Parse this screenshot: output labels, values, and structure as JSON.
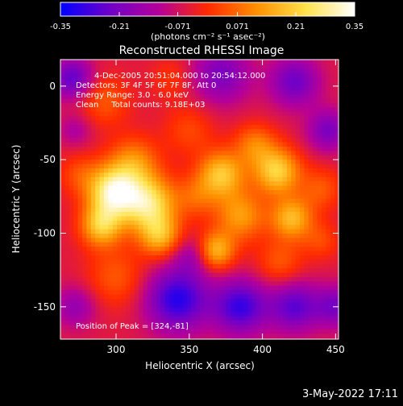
{
  "colors": {
    "background": "#000000",
    "foreground": "#ffffff",
    "colorbar_stops": [
      "#0000ff",
      "#6f00c9",
      "#b4009a",
      "#ff2a00",
      "#ff9000",
      "#ffe24a",
      "#ffffff"
    ]
  },
  "colorbar": {
    "ticks": [
      "-0.35",
      "-0.21",
      "-0.071",
      "0.071",
      "0.21",
      "0.35"
    ],
    "units": "(photons cm⁻² s⁻¹ asec⁻²)"
  },
  "timestamp": "3-May-2022 17:11",
  "chart_data": {
    "type": "heatmap",
    "title": "Reconstructed RHESSI Image",
    "xlabel": "Heliocentric X (arcsec)",
    "ylabel": "Heliocentric Y (arcsec)",
    "xlim": [
      262,
      452
    ],
    "ylim": [
      -172,
      18
    ],
    "value_range": [
      -0.35,
      0.35
    ],
    "x_ticks": [
      300,
      350,
      400,
      450
    ],
    "y_ticks": [
      0,
      -50,
      -100,
      -150
    ],
    "annotations": [
      "4-Dec-2005 20:51:04.000 to 20:54:12.000",
      "Detectors: 3F 4F 5F 6F 7F 8F, Att 0",
      "Energy Range: 3.0 - 6.0 keV",
      "Clean     Total counts: 9.18E+03"
    ],
    "peak_label": "Position of Peak = [324,-81]",
    "sources": [
      {
        "x": 298,
        "y": -72,
        "value": 0.34,
        "sigma": 12
      },
      {
        "x": 322,
        "y": -80,
        "value": 0.3,
        "sigma": 13
      },
      {
        "x": 290,
        "y": -95,
        "value": 0.24,
        "sigma": 10
      },
      {
        "x": 330,
        "y": -102,
        "value": 0.2,
        "sigma": 10
      },
      {
        "x": 312,
        "y": -52,
        "value": 0.16,
        "sigma": 12
      },
      {
        "x": 300,
        "y": -130,
        "value": 0.1,
        "sigma": 14
      },
      {
        "x": 292,
        "y": -10,
        "value": 0.1,
        "sigma": 12
      },
      {
        "x": 350,
        "y": -30,
        "value": 0.08,
        "sigma": 12
      },
      {
        "x": 372,
        "y": -60,
        "value": 0.24,
        "sigma": 11
      },
      {
        "x": 385,
        "y": -88,
        "value": 0.18,
        "sigma": 12
      },
      {
        "x": 368,
        "y": -112,
        "value": 0.22,
        "sigma": 9
      },
      {
        "x": 410,
        "y": -58,
        "value": 0.26,
        "sigma": 11
      },
      {
        "x": 420,
        "y": -90,
        "value": 0.22,
        "sigma": 10
      },
      {
        "x": 395,
        "y": -40,
        "value": 0.14,
        "sigma": 10
      },
      {
        "x": 412,
        "y": -120,
        "value": 0.1,
        "sigma": 11
      },
      {
        "x": 440,
        "y": -70,
        "value": 0.1,
        "sigma": 10
      },
      {
        "x": 440,
        "y": -105,
        "value": 0.08,
        "sigma": 9
      },
      {
        "x": 355,
        "y": -75,
        "value": 0.1,
        "sigma": 10
      },
      {
        "x": 275,
        "y": -60,
        "value": 0.08,
        "sigma": 10
      },
      {
        "x": 338,
        "y": 5,
        "value": 0.06,
        "sigma": 10
      },
      {
        "x": 270,
        "y": 5,
        "value": -0.2,
        "sigma": 10
      },
      {
        "x": 372,
        "y": 8,
        "value": -0.16,
        "sigma": 14
      },
      {
        "x": 422,
        "y": 3,
        "value": -0.18,
        "sigma": 12
      },
      {
        "x": 445,
        "y": -30,
        "value": -0.16,
        "sigma": 10
      },
      {
        "x": 342,
        "y": -145,
        "value": -0.26,
        "sigma": 15
      },
      {
        "x": 385,
        "y": -150,
        "value": -0.24,
        "sigma": 13
      },
      {
        "x": 422,
        "y": -150,
        "value": -0.2,
        "sigma": 12
      },
      {
        "x": 272,
        "y": -150,
        "value": -0.12,
        "sigma": 10
      },
      {
        "x": 450,
        "y": -150,
        "value": -0.16,
        "sigma": 10
      },
      {
        "x": 352,
        "y": -115,
        "value": -0.1,
        "sigma": 9
      },
      {
        "x": 272,
        "y": -30,
        "value": -0.08,
        "sigma": 8
      }
    ]
  }
}
